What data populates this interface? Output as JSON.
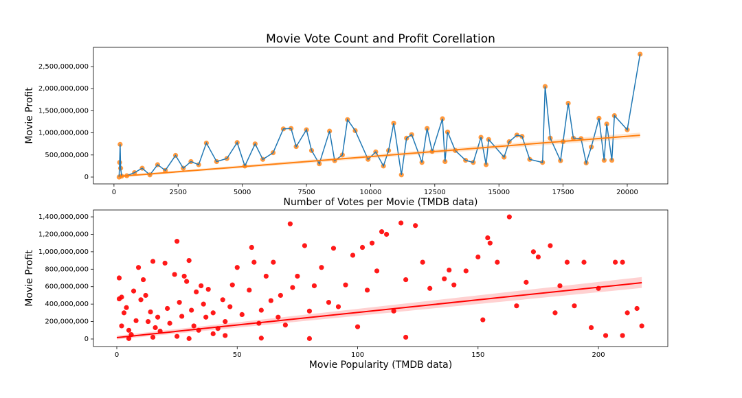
{
  "chart_data": [
    {
      "type": "line",
      "title": "Movie Vote Count and Profit Corellation",
      "xlabel": "Number of Votes per Movie (TMDB data)",
      "ylabel": "Movie Profit",
      "xlim": [
        -800,
        21580
      ],
      "ylim": [
        -155000000,
        2935000000
      ],
      "xticks": [
        0,
        2500,
        5000,
        7500,
        10000,
        12500,
        15000,
        17500,
        20000
      ],
      "yticks": [
        0,
        {
          "value": 500000000,
          "label": "500,000,000"
        },
        {
          "value": 1000000000,
          "label": "1,000,000,000"
        },
        {
          "value": 1500000000,
          "label": "1,500,000,000"
        },
        {
          "value": 2000000000,
          "label": "2,000,000,000"
        },
        {
          "value": 2500000000,
          "label": "2,500,000,000"
        }
      ],
      "line_color": "#1f77b4",
      "marker_color": "#ff7f0e",
      "x": [
        200,
        220,
        240,
        260,
        300,
        500,
        800,
        1100,
        1400,
        1700,
        2000,
        2400,
        2700,
        3000,
        3300,
        3600,
        4000,
        4400,
        4800,
        5100,
        5500,
        5800,
        6200,
        6600,
        6900,
        7100,
        7500,
        7700,
        8000,
        8400,
        8600,
        8900,
        9100,
        9400,
        9900,
        10200,
        10500,
        10700,
        10900,
        11200,
        11400,
        11600,
        12000,
        12200,
        12400,
        12800,
        12900,
        13000,
        13300,
        13700,
        14000,
        14300,
        14500,
        14600,
        15200,
        15400,
        15700,
        15900,
        16200,
        16700,
        16800,
        17000,
        17400,
        17500,
        17700,
        17900,
        18200,
        18400,
        18600,
        18900,
        19100,
        19200,
        19400,
        19500,
        20000,
        20500
      ],
      "values": [
        0,
        330000000,
        740000000,
        200000000,
        20000000,
        30000000,
        100000000,
        200000000,
        50000000,
        280000000,
        150000000,
        490000000,
        200000000,
        350000000,
        280000000,
        770000000,
        350000000,
        420000000,
        780000000,
        250000000,
        750000000,
        400000000,
        550000000,
        1090000000,
        1100000000,
        690000000,
        1070000000,
        600000000,
        300000000,
        1040000000,
        370000000,
        500000000,
        1300000000,
        1050000000,
        400000000,
        570000000,
        250000000,
        600000000,
        1220000000,
        50000000,
        880000000,
        960000000,
        330000000,
        1100000000,
        580000000,
        1320000000,
        350000000,
        1020000000,
        600000000,
        380000000,
        330000000,
        900000000,
        280000000,
        850000000,
        450000000,
        800000000,
        950000000,
        920000000,
        400000000,
        330000000,
        2050000000,
        880000000,
        370000000,
        800000000,
        1670000000,
        880000000,
        870000000,
        320000000,
        680000000,
        1330000000,
        380000000,
        1200000000,
        380000000,
        1390000000,
        1070000000,
        2780000000
      ],
      "trend": {
        "x": [
          200,
          20500
        ],
        "values": [
          15000000,
          945000000
        ],
        "lower": [
          -10000000,
          885000000
        ],
        "upper": [
          40000000,
          1005000000
        ]
      }
    },
    {
      "type": "scatter",
      "xlabel": "Movie Popularity (TMDB data)",
      "ylabel": "Movie Profit",
      "xlim": [
        -9.7,
        228.8
      ],
      "ylim": [
        -86500000,
        1479000000
      ],
      "xticks": [
        0,
        50,
        100,
        150,
        200
      ],
      "yticks": [
        0,
        {
          "value": 200000000,
          "label": "200,000,000"
        },
        {
          "value": 400000000,
          "label": "400,000,000"
        },
        {
          "value": 600000000,
          "label": "600,000,000"
        },
        {
          "value": 800000000,
          "label": "800,000,000"
        },
        {
          "value": 1000000000,
          "label": "1,000,000,000"
        },
        {
          "value": 1200000000,
          "label": "1,200,000,000"
        },
        {
          "value": 1400000000,
          "label": "1,400,000,000"
        }
      ],
      "marker_color": "#ff0000",
      "x": [
        1,
        1,
        2,
        3,
        2,
        4,
        5,
        6,
        8,
        7,
        9,
        10,
        11,
        12,
        13,
        14,
        15,
        16,
        17,
        18,
        20,
        21,
        22,
        24,
        25,
        26,
        27,
        28,
        29,
        30,
        31,
        32,
        33,
        34,
        35,
        36,
        37,
        38,
        40,
        42,
        44,
        45,
        47,
        48,
        50,
        52,
        55,
        56,
        57,
        59,
        60,
        62,
        64,
        65,
        67,
        68,
        70,
        72,
        73,
        75,
        78,
        80,
        82,
        85,
        88,
        90,
        92,
        95,
        98,
        100,
        102,
        104,
        106,
        108,
        110,
        112,
        115,
        118,
        120,
        124,
        127,
        130,
        136,
        138,
        140,
        145,
        150,
        152,
        154,
        155,
        158,
        163,
        166,
        170,
        173,
        175,
        180,
        182,
        184,
        187,
        190,
        194,
        197,
        200,
        207,
        210,
        212,
        216,
        218,
        210,
        203,
        120,
        60,
        25,
        40,
        80,
        5,
        15,
        30,
        45
      ],
      "values": [
        700000000,
        460000000,
        480000000,
        300000000,
        150000000,
        360000000,
        100000000,
        50000000,
        210000000,
        550000000,
        820000000,
        450000000,
        680000000,
        500000000,
        200000000,
        310000000,
        890000000,
        130000000,
        250000000,
        90000000,
        870000000,
        350000000,
        180000000,
        740000000,
        1120000000,
        420000000,
        260000000,
        720000000,
        660000000,
        900000000,
        330000000,
        150000000,
        540000000,
        100000000,
        610000000,
        400000000,
        250000000,
        570000000,
        300000000,
        120000000,
        450000000,
        200000000,
        370000000,
        620000000,
        820000000,
        280000000,
        560000000,
        1050000000,
        880000000,
        180000000,
        330000000,
        720000000,
        440000000,
        880000000,
        250000000,
        500000000,
        160000000,
        1320000000,
        590000000,
        720000000,
        1070000000,
        320000000,
        610000000,
        820000000,
        420000000,
        1040000000,
        370000000,
        620000000,
        960000000,
        140000000,
        1050000000,
        560000000,
        1100000000,
        780000000,
        1230000000,
        1200000000,
        320000000,
        1330000000,
        680000000,
        1300000000,
        880000000,
        580000000,
        690000000,
        790000000,
        620000000,
        780000000,
        940000000,
        220000000,
        1160000000,
        1100000000,
        880000000,
        1400000000,
        380000000,
        650000000,
        1000000000,
        940000000,
        1070000000,
        300000000,
        610000000,
        880000000,
        380000000,
        880000000,
        130000000,
        580000000,
        880000000,
        880000000,
        300000000,
        350000000,
        150000000,
        40000000,
        40000000,
        20000000,
        10000000,
        30000000,
        60000000,
        5000000,
        5000000,
        20000000,
        5000000,
        40000000
      ],
      "trend": {
        "x": [
          0,
          218
        ],
        "values": [
          16000000,
          645000000
        ],
        "lower": [
          -5000000,
          585000000
        ],
        "upper": [
          37000000,
          710000000
        ]
      }
    }
  ]
}
